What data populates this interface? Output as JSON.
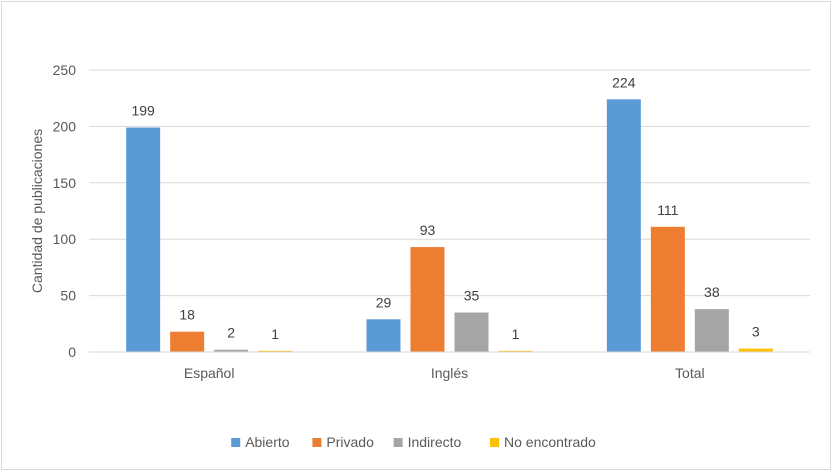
{
  "chart_data": {
    "type": "bar",
    "title": "",
    "xlabel": "",
    "ylabel": "Cantidad de publicaciones",
    "ylim": [
      0,
      250
    ],
    "yticks": [
      "0",
      "50",
      "100",
      "150",
      "200",
      "250"
    ],
    "categories": [
      "Español",
      "Inglés",
      "Total"
    ],
    "series": [
      {
        "name": "Abierto",
        "color": "#5b9bd5",
        "values": [
          199,
          29,
          224
        ]
      },
      {
        "name": "Privado",
        "color": "#ed7d31",
        "values": [
          18,
          93,
          111
        ]
      },
      {
        "name": "Indirecto",
        "color": "#a5a5a5",
        "values": [
          2,
          35,
          38
        ]
      },
      {
        "name": "No encontrado",
        "color": "#ffc000",
        "values": [
          1,
          1,
          3
        ]
      }
    ],
    "data_labels": true,
    "grid": true,
    "legend_position": "bottom"
  }
}
